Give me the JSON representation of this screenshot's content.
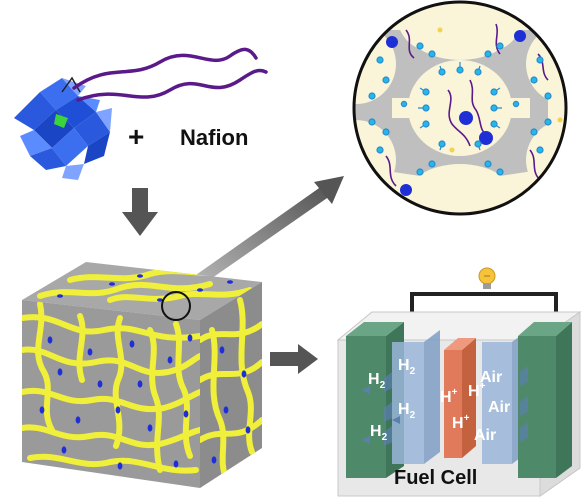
{
  "labels": {
    "plus": "+",
    "nafion": "Nafion",
    "fuel_cell": "Fuel Cell"
  },
  "fuel_cell": {
    "h2": [
      "H",
      "H",
      "H",
      "H"
    ],
    "h2_sub": "2",
    "h_plus": [
      "H",
      "H",
      "H"
    ],
    "h_plus_sup": "+",
    "air": [
      "Air",
      "Air",
      "Air"
    ]
  },
  "colors": {
    "polyoxometalate": "#1f4fd6",
    "polyoxometalate_light": "#5b8cff",
    "polymer_chain": "#5a1a8a",
    "ionomer_channel": "#f3f06a",
    "matrix": "#9e9e9e",
    "membrane": "#e07a5a",
    "electrode": "#7aa0c8",
    "plate": "#4e8a6a",
    "arrow": "#555555",
    "bulb": "#f6c33a"
  },
  "icons": {
    "bulb": "light-bulb-icon"
  }
}
